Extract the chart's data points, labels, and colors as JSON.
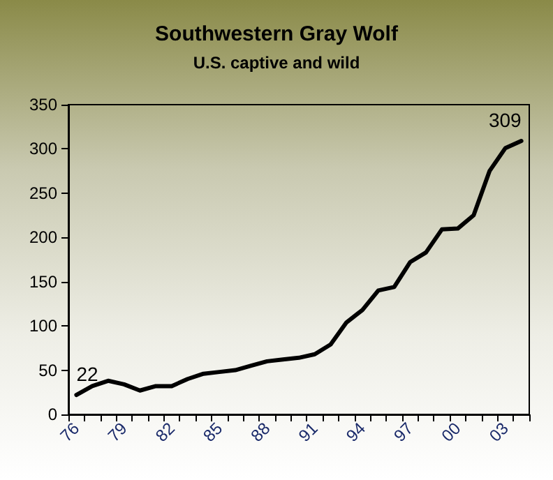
{
  "chart_data": {
    "type": "line",
    "title": "Southwestern Gray Wolf",
    "subtitle": "U.S. captive and wild",
    "categories": [
      "76",
      null,
      null,
      "79",
      null,
      null,
      "82",
      null,
      null,
      "85",
      null,
      null,
      "88",
      null,
      null,
      "91",
      null,
      null,
      "94",
      null,
      null,
      "97",
      null,
      null,
      "00",
      null,
      null,
      "03",
      null
    ],
    "series": [
      {
        "color": "#000000",
        "values": [
          22,
          32,
          38,
          34,
          27,
          32,
          32,
          40,
          46,
          48,
          50,
          55,
          60,
          62,
          64,
          68,
          79,
          104,
          118,
          140,
          144,
          172,
          183,
          209,
          210,
          225,
          275,
          301,
          309
        ],
        "value_labels": [
          "22",
          null,
          null,
          null,
          null,
          null,
          null,
          null,
          null,
          null,
          null,
          null,
          null,
          null,
          null,
          null,
          null,
          null,
          null,
          null,
          null,
          null,
          null,
          null,
          null,
          null,
          null,
          null,
          "309"
        ]
      }
    ],
    "ylim": [
      0,
      350
    ],
    "yticks": [
      0,
      50,
      100,
      150,
      200,
      250,
      300,
      350
    ],
    "grid": false,
    "marker": "none",
    "line_style": "solid"
  }
}
